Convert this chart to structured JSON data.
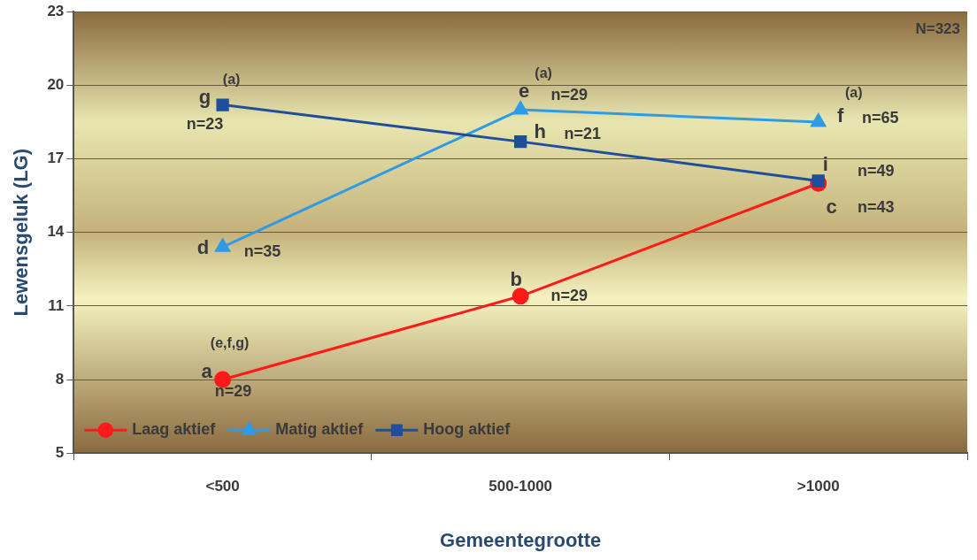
{
  "chart_data": {
    "type": "line",
    "xlabel": "Gemeentegrootte",
    "ylabel": "Lewensgeluk (LG)",
    "categories": [
      "<500",
      "500-1000",
      ">1000"
    ],
    "series": [
      {
        "name": "Laag aktief",
        "color": "#ff1a1a",
        "marker": "circle",
        "values": [
          8.0,
          11.4,
          16.0
        ]
      },
      {
        "name": "Matig aktief",
        "color": "#2f9be6",
        "marker": "triangle",
        "values": [
          13.4,
          19.0,
          18.5
        ]
      },
      {
        "name": "Hoog aktief",
        "color": "#1f4e9a",
        "marker": "square",
        "values": [
          19.2,
          17.7,
          16.1
        ]
      }
    ],
    "ylim": [
      5,
      23
    ],
    "yticks": [
      5,
      8,
      11,
      14,
      17,
      20,
      23
    ],
    "grid": "y",
    "legend": "bottom left",
    "line_style": "solid",
    "annotations": [
      {
        "text": "a",
        "x": "<500",
        "y": 8.0
      },
      {
        "text": "n=29",
        "x": "<500",
        "y": 8.0
      },
      {
        "text": "(e,f,g)",
        "x": "<500",
        "y": 8.0
      },
      {
        "text": "b",
        "x": "500-1000",
        "y": 11.4
      },
      {
        "text": "n=29",
        "x": "500-1000",
        "y": 11.4
      },
      {
        "text": "c",
        "x": ">1000",
        "y": 16.0
      },
      {
        "text": "n=43",
        "x": ">1000",
        "y": 16.0
      },
      {
        "text": "d",
        "x": "<500",
        "y": 13.4
      },
      {
        "text": "n=35",
        "x": "<500",
        "y": 13.4
      },
      {
        "text": "e",
        "x": "500-1000",
        "y": 19.0
      },
      {
        "text": "n=29",
        "x": "500-1000",
        "y": 19.0
      },
      {
        "text": "(a)",
        "x": "500-1000",
        "y": 19.0
      },
      {
        "text": "f",
        "x": ">1000",
        "y": 18.5
      },
      {
        "text": "n=65",
        "x": ">1000",
        "y": 18.5
      },
      {
        "text": "(a)",
        "x": ">1000",
        "y": 18.5
      },
      {
        "text": "g",
        "x": "<500",
        "y": 19.2
      },
      {
        "text": "n=23",
        "x": "<500",
        "y": 19.2
      },
      {
        "text": "(a)",
        "x": "<500",
        "y": 19.2
      },
      {
        "text": "h",
        "x": "500-1000",
        "y": 17.7
      },
      {
        "text": "n=21",
        "x": "500-1000",
        "y": 17.7
      },
      {
        "text": "i",
        "x": ">1000",
        "y": 16.1
      },
      {
        "text": "n=49",
        "x": ">1000",
        "y": 16.1
      },
      "N=323"
    ]
  }
}
